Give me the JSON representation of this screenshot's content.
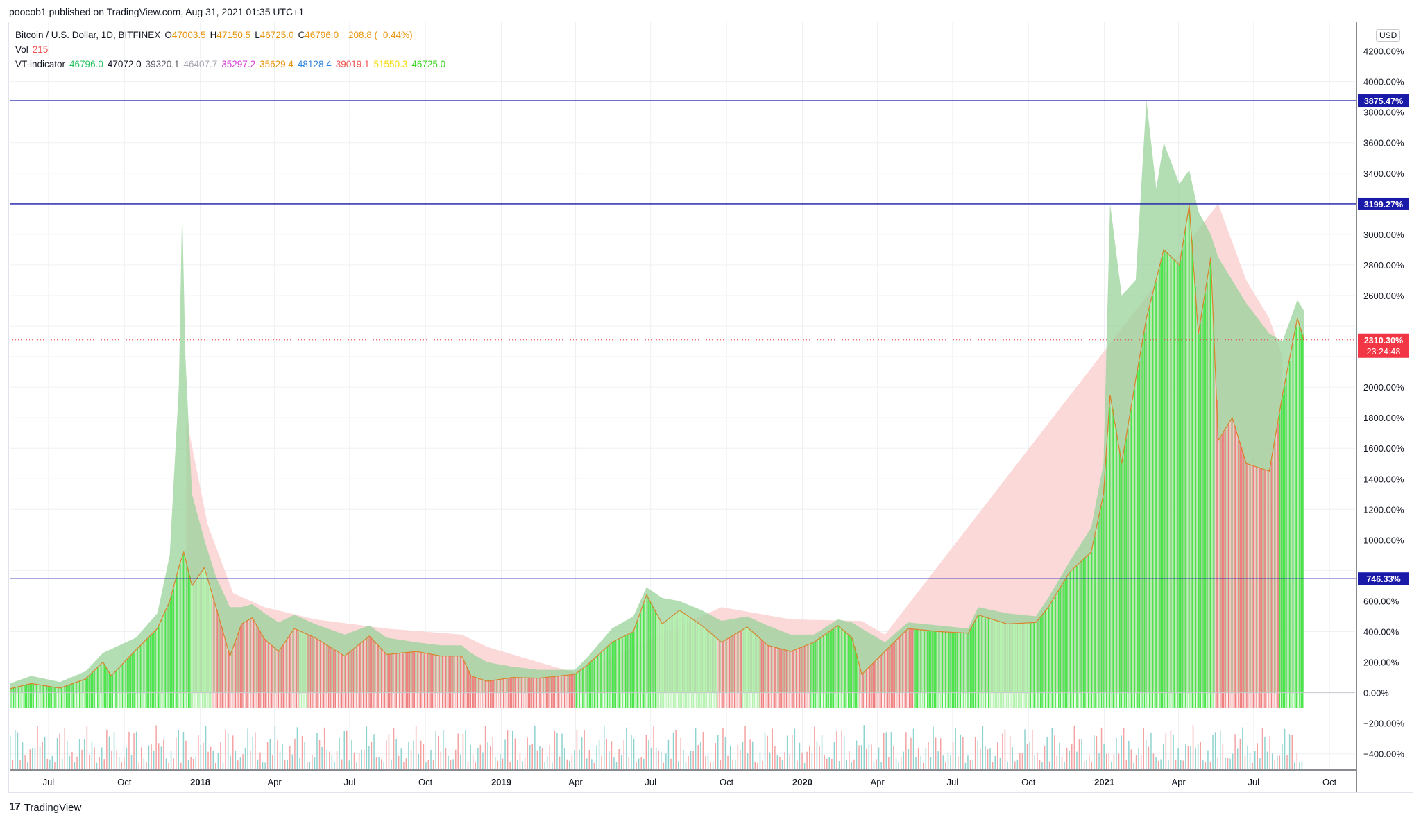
{
  "header": {
    "publisher": "poocob1 published on TradingView.com, Aug 31, 2021 01:35 UTC+1"
  },
  "legend": {
    "symbol": "Bitcoin / U.S. Dollar, 1D, BITFINEX",
    "open_label": "O",
    "open": "47003.5",
    "high_label": "H",
    "high": "47150.5",
    "low_label": "L",
    "low": "46725.0",
    "close_label": "C",
    "close": "46796.0",
    "change": "−208.8 (−0.44%)",
    "vol_label": "Vol",
    "vol": "215",
    "vt_label": "VT-indicator",
    "vt_values": [
      {
        "value": "46796.0",
        "color": "#22c35e"
      },
      {
        "value": "47072.0",
        "color": "#131722"
      },
      {
        "value": "39320.1",
        "color": "#5d606b"
      },
      {
        "value": "46407.7",
        "color": "#a3a6af"
      },
      {
        "value": "35297.2",
        "color": "#d53ad6"
      },
      {
        "value": "35629.4",
        "color": "#e8940b"
      },
      {
        "value": "48128.4",
        "color": "#2e86de"
      },
      {
        "value": "39019.1",
        "color": "#ef5350"
      },
      {
        "value": "51550.3",
        "color": "#f5d90a"
      },
      {
        "value": "46725.0",
        "color": "#38d61b"
      }
    ],
    "ohlc_color": "#e8940b"
  },
  "currency": "USD",
  "brand": {
    "logo": "17",
    "name": "TradingView"
  },
  "colors": {
    "green_bar": "#4ce54c",
    "light_green_bar": "#b6f2b0",
    "red_bar": "#f08080",
    "light_red_bar": "#f9c9c9",
    "green_cloud": "#9ad19a",
    "red_cloud": "#fbd0d0",
    "level_line": "#1a1aa8",
    "last_price": "#f23645",
    "grid": "#eef0f4"
  },
  "chart_data": {
    "type": "area",
    "title": "",
    "xlabel": "",
    "ylabel": "",
    "y_unit": "%",
    "ylim": [
      -520,
      4340
    ],
    "xlim": [
      "2017-05-15",
      "2021-11-01"
    ],
    "y_ticks": [
      "−400.00%",
      "−200.00%",
      "0.00%",
      "200.00%",
      "400.00%",
      "600.00%",
      "800.00%",
      "1000.00%",
      "1200.00%",
      "1400.00%",
      "1600.00%",
      "1800.00%",
      "2000.00%",
      "2200.00%",
      "2400.00%",
      "2600.00%",
      "2800.00%",
      "3000.00%",
      "3200.00%",
      "3400.00%",
      "3600.00%",
      "3800.00%",
      "4000.00%",
      "4200.00%"
    ],
    "y_tick_values": [
      -400,
      -200,
      0,
      200,
      400,
      600,
      800,
      1000,
      1200,
      1400,
      1600,
      1800,
      2000,
      2200,
      2400,
      2600,
      2800,
      3000,
      3200,
      3400,
      3600,
      3800,
      4000,
      4200
    ],
    "x_ticks": [
      {
        "label": "Jul",
        "date": "2017-07-01",
        "year": false
      },
      {
        "label": "Oct",
        "date": "2017-10-01",
        "year": false
      },
      {
        "label": "2018",
        "date": "2018-01-01",
        "year": true
      },
      {
        "label": "Apr",
        "date": "2018-04-01",
        "year": false
      },
      {
        "label": "Jul",
        "date": "2018-07-01",
        "year": false
      },
      {
        "label": "Oct",
        "date": "2018-10-01",
        "year": false
      },
      {
        "label": "2019",
        "date": "2019-01-01",
        "year": true
      },
      {
        "label": "Apr",
        "date": "2019-04-01",
        "year": false
      },
      {
        "label": "Jul",
        "date": "2019-07-01",
        "year": false
      },
      {
        "label": "Oct",
        "date": "2019-10-01",
        "year": false
      },
      {
        "label": "2020",
        "date": "2020-01-01",
        "year": true
      },
      {
        "label": "Apr",
        "date": "2020-04-01",
        "year": false
      },
      {
        "label": "Jul",
        "date": "2020-07-01",
        "year": false
      },
      {
        "label": "Oct",
        "date": "2020-10-01",
        "year": false
      },
      {
        "label": "2021",
        "date": "2021-01-01",
        "year": true
      },
      {
        "label": "Apr",
        "date": "2021-04-01",
        "year": false
      },
      {
        "label": "Jul",
        "date": "2021-07-01",
        "year": false
      },
      {
        "label": "Oct",
        "date": "2021-10-01",
        "year": false
      }
    ],
    "levels": [
      {
        "value": 3875.47,
        "label": "3875.47%"
      },
      {
        "value": 3199.27,
        "label": "3199.27%"
      },
      {
        "value": 746.33,
        "label": "746.33%"
      }
    ],
    "last_value": {
      "value": 2310.3,
      "label": "2310.30%",
      "countdown": "23:24:48"
    },
    "bar_baseline": -100,
    "price_series": {
      "name": "",
      "points": [
        [
          "2017-05-15",
          25
        ],
        [
          "2017-06-10",
          60
        ],
        [
          "2017-07-15",
          30
        ],
        [
          "2017-08-15",
          90
        ],
        [
          "2017-09-05",
          200
        ],
        [
          "2017-09-15",
          110
        ],
        [
          "2017-10-15",
          280
        ],
        [
          "2017-11-10",
          420
        ],
        [
          "2017-11-25",
          600
        ],
        [
          "2017-12-07",
          840
        ],
        [
          "2017-12-12",
          920
        ],
        [
          "2017-12-22",
          700
        ],
        [
          "2018-01-06",
          820
        ],
        [
          "2018-01-20",
          560
        ],
        [
          "2018-02-06",
          240
        ],
        [
          "2018-02-20",
          450
        ],
        [
          "2018-03-05",
          490
        ],
        [
          "2018-03-20",
          350
        ],
        [
          "2018-04-06",
          270
        ],
        [
          "2018-04-25",
          420
        ],
        [
          "2018-05-20",
          360
        ],
        [
          "2018-06-25",
          240
        ],
        [
          "2018-07-25",
          370
        ],
        [
          "2018-08-15",
          250
        ],
        [
          "2018-09-20",
          270
        ],
        [
          "2018-10-20",
          240
        ],
        [
          "2018-11-14",
          240
        ],
        [
          "2018-11-25",
          110
        ],
        [
          "2018-12-15",
          75
        ],
        [
          "2019-01-15",
          100
        ],
        [
          "2019-02-15",
          95
        ],
        [
          "2019-03-31",
          120
        ],
        [
          "2019-04-15",
          180
        ],
        [
          "2019-05-15",
          330
        ],
        [
          "2019-06-10",
          400
        ],
        [
          "2019-06-26",
          640
        ],
        [
          "2019-07-15",
          450
        ],
        [
          "2019-08-05",
          540
        ],
        [
          "2019-09-01",
          440
        ],
        [
          "2019-09-25",
          330
        ],
        [
          "2019-10-26",
          430
        ],
        [
          "2019-11-20",
          310
        ],
        [
          "2019-12-18",
          270
        ],
        [
          "2020-01-15",
          330
        ],
        [
          "2020-02-13",
          440
        ],
        [
          "2020-03-01",
          360
        ],
        [
          "2020-03-13",
          120
        ],
        [
          "2020-04-10",
          270
        ],
        [
          "2020-05-08",
          420
        ],
        [
          "2020-06-15",
          400
        ],
        [
          "2020-07-20",
          390
        ],
        [
          "2020-08-01",
          510
        ],
        [
          "2020-09-05",
          450
        ],
        [
          "2020-10-10",
          460
        ],
        [
          "2020-10-25",
          560
        ],
        [
          "2020-11-20",
          790
        ],
        [
          "2020-12-16",
          920
        ],
        [
          "2020-12-31",
          1300
        ],
        [
          "2021-01-08",
          1950
        ],
        [
          "2021-01-22",
          1500
        ],
        [
          "2021-02-08",
          2050
        ],
        [
          "2021-02-21",
          2450
        ],
        [
          "2021-03-14",
          2900
        ],
        [
          "2021-04-02",
          2800
        ],
        [
          "2021-04-14",
          3190
        ],
        [
          "2021-04-25",
          2350
        ],
        [
          "2021-05-10",
          2850
        ],
        [
          "2021-05-19",
          1650
        ],
        [
          "2021-06-05",
          1800
        ],
        [
          "2021-06-22",
          1500
        ],
        [
          "2021-07-20",
          1450
        ],
        [
          "2021-08-05",
          1950
        ],
        [
          "2021-08-23",
          2450
        ],
        [
          "2021-08-31",
          2310
        ]
      ]
    },
    "upper_band": {
      "name": "",
      "points": [
        [
          "2017-05-15",
          60
        ],
        [
          "2017-06-10",
          110
        ],
        [
          "2017-07-15",
          70
        ],
        [
          "2017-08-15",
          140
        ],
        [
          "2017-09-05",
          260
        ],
        [
          "2017-10-15",
          360
        ],
        [
          "2017-11-10",
          520
        ],
        [
          "2017-11-25",
          900
        ],
        [
          "2017-12-06",
          2000
        ],
        [
          "2017-12-10",
          3190
        ],
        [
          "2017-12-14",
          2200
        ],
        [
          "2017-12-22",
          1300
        ],
        [
          "2018-01-06",
          1000
        ],
        [
          "2018-01-20",
          760
        ],
        [
          "2018-02-06",
          560
        ],
        [
          "2018-02-20",
          560
        ],
        [
          "2018-03-05",
          580
        ],
        [
          "2018-03-20",
          520
        ],
        [
          "2018-04-06",
          460
        ],
        [
          "2018-04-25",
          510
        ],
        [
          "2018-05-20",
          450
        ],
        [
          "2018-06-25",
          380
        ],
        [
          "2018-07-25",
          440
        ],
        [
          "2018-08-15",
          360
        ],
        [
          "2018-09-20",
          330
        ],
        [
          "2018-10-20",
          310
        ],
        [
          "2018-11-14",
          310
        ],
        [
          "2018-11-25",
          260
        ],
        [
          "2018-12-15",
          200
        ],
        [
          "2019-01-15",
          170
        ],
        [
          "2019-02-15",
          150
        ],
        [
          "2019-03-31",
          150
        ],
        [
          "2019-04-15",
          230
        ],
        [
          "2019-05-15",
          420
        ],
        [
          "2019-06-10",
          500
        ],
        [
          "2019-06-26",
          690
        ],
        [
          "2019-07-15",
          620
        ],
        [
          "2019-08-05",
          600
        ],
        [
          "2019-09-01",
          540
        ],
        [
          "2019-09-25",
          470
        ],
        [
          "2019-10-26",
          500
        ],
        [
          "2019-11-20",
          440
        ],
        [
          "2019-12-18",
          380
        ],
        [
          "2020-01-15",
          380
        ],
        [
          "2020-02-13",
          480
        ],
        [
          "2020-03-01",
          460
        ],
        [
          "2020-03-13",
          420
        ],
        [
          "2020-04-10",
          330
        ],
        [
          "2020-05-08",
          460
        ],
        [
          "2020-06-15",
          440
        ],
        [
          "2020-07-20",
          420
        ],
        [
          "2020-08-01",
          560
        ],
        [
          "2020-09-05",
          520
        ],
        [
          "2020-10-10",
          500
        ],
        [
          "2020-10-25",
          620
        ],
        [
          "2020-11-20",
          860
        ],
        [
          "2020-12-16",
          1080
        ],
        [
          "2020-12-31",
          1500
        ],
        [
          "2021-01-08",
          3200
        ],
        [
          "2021-01-22",
          2600
        ],
        [
          "2021-02-08",
          2700
        ],
        [
          "2021-02-21",
          3880
        ],
        [
          "2021-03-05",
          3300
        ],
        [
          "2021-03-14",
          3600
        ],
        [
          "2021-04-02",
          3330
        ],
        [
          "2021-04-14",
          3420
        ],
        [
          "2021-04-25",
          3150
        ],
        [
          "2021-05-10",
          3000
        ],
        [
          "2021-05-19",
          2850
        ],
        [
          "2021-06-05",
          2700
        ],
        [
          "2021-06-22",
          2550
        ],
        [
          "2021-07-20",
          2350
        ],
        [
          "2021-08-05",
          2300
        ],
        [
          "2021-08-23",
          2570
        ],
        [
          "2021-08-31",
          2500
        ]
      ]
    },
    "decay_band": {
      "name": "",
      "points": [
        [
          "2017-12-15",
          1800
        ],
        [
          "2018-01-10",
          1100
        ],
        [
          "2018-02-10",
          650
        ],
        [
          "2018-03-20",
          560
        ],
        [
          "2018-05-20",
          480
        ],
        [
          "2018-08-15",
          420
        ],
        [
          "2018-11-14",
          380
        ],
        [
          "2018-12-15",
          300
        ],
        [
          "2019-02-15",
          200
        ],
        [
          "2019-04-01",
          130
        ],
        [
          "2019-09-25",
          560
        ],
        [
          "2019-12-18",
          480
        ],
        [
          "2020-03-13",
          470
        ],
        [
          "2020-04-10",
          380
        ],
        [
          "2021-05-19",
          3200
        ],
        [
          "2021-06-22",
          2700
        ],
        [
          "2021-07-20",
          2450
        ],
        [
          "2021-08-05",
          2200
        ]
      ]
    },
    "bar_segments": [
      {
        "start": "2017-05-15",
        "end": "2017-12-20",
        "tone": "green"
      },
      {
        "start": "2017-12-20",
        "end": "2018-01-15",
        "tone": "light_green"
      },
      {
        "start": "2018-01-15",
        "end": "2018-05-01",
        "tone": "red"
      },
      {
        "start": "2018-05-01",
        "end": "2018-05-10",
        "tone": "light_green"
      },
      {
        "start": "2018-05-10",
        "end": "2019-04-01",
        "tone": "red"
      },
      {
        "start": "2019-04-01",
        "end": "2019-07-10",
        "tone": "green"
      },
      {
        "start": "2019-07-10",
        "end": "2019-09-20",
        "tone": "light_green"
      },
      {
        "start": "2019-09-20",
        "end": "2019-10-20",
        "tone": "red"
      },
      {
        "start": "2019-10-20",
        "end": "2019-11-10",
        "tone": "light_green"
      },
      {
        "start": "2019-11-10",
        "end": "2020-01-10",
        "tone": "red"
      },
      {
        "start": "2020-01-10",
        "end": "2020-03-10",
        "tone": "green"
      },
      {
        "start": "2020-03-10",
        "end": "2020-05-15",
        "tone": "red"
      },
      {
        "start": "2020-05-15",
        "end": "2020-08-15",
        "tone": "green"
      },
      {
        "start": "2020-08-15",
        "end": "2020-10-01",
        "tone": "light_green"
      },
      {
        "start": "2020-10-01",
        "end": "2021-05-15",
        "tone": "green"
      },
      {
        "start": "2021-05-15",
        "end": "2021-08-01",
        "tone": "red"
      },
      {
        "start": "2021-08-01",
        "end": "2021-08-31",
        "tone": "green"
      }
    ]
  }
}
